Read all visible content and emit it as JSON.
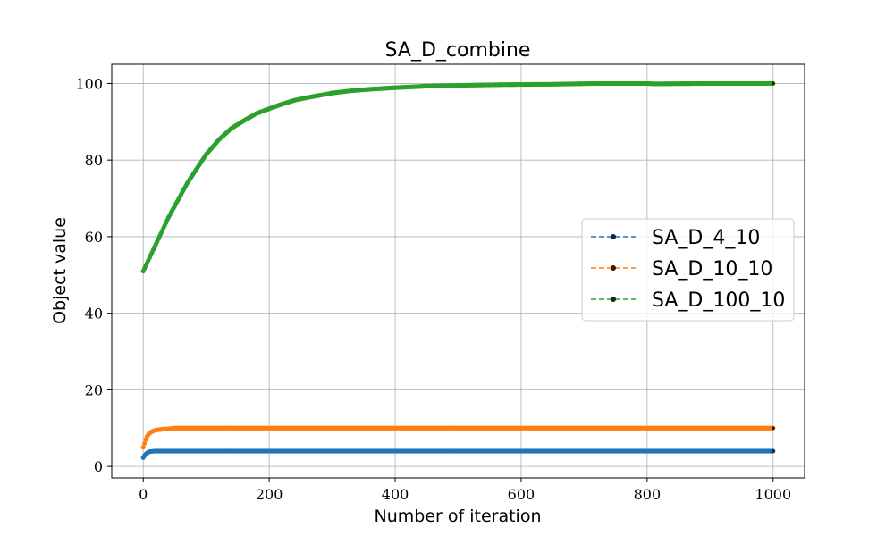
{
  "chart_data": {
    "type": "line",
    "title": "SA_D_combine",
    "xlabel": "Number of iteration",
    "ylabel": "Object value",
    "xlim": [
      -50,
      1050
    ],
    "ylim": [
      -3,
      105
    ],
    "xticks": [
      0,
      200,
      400,
      600,
      800,
      1000
    ],
    "yticks": [
      0,
      20,
      40,
      60,
      80,
      100
    ],
    "grid": true,
    "legend_position": "center-right",
    "series": [
      {
        "name": "SA_D_4_10",
        "color": "#1f77b4",
        "marker_color": "#0b2a4a",
        "x": [
          0,
          2,
          4,
          6,
          8,
          10,
          15,
          20,
          50,
          100,
          200,
          400,
          600,
          800,
          1000
        ],
        "y": [
          2.3,
          2.8,
          3.2,
          3.5,
          3.7,
          3.85,
          3.95,
          4,
          4,
          4,
          4,
          4,
          4,
          4,
          4
        ]
      },
      {
        "name": "SA_D_10_10",
        "color": "#ff7f0e",
        "marker_color": "#3a1a00",
        "x": [
          0,
          2,
          4,
          6,
          8,
          10,
          15,
          20,
          30,
          40,
          50,
          100,
          200,
          400,
          600,
          800,
          1000
        ],
        "y": [
          5,
          6,
          7,
          7.8,
          8.3,
          8.7,
          9.2,
          9.5,
          9.7,
          9.8,
          10,
          10,
          10,
          10,
          10,
          10,
          10
        ]
      },
      {
        "name": "SA_D_100_10",
        "color": "#2ca02c",
        "marker_color": "#0d2e0d",
        "x": [
          0,
          10,
          20,
          30,
          40,
          50,
          60,
          70,
          80,
          90,
          100,
          120,
          140,
          160,
          180,
          200,
          220,
          240,
          260,
          280,
          300,
          330,
          360,
          400,
          450,
          500,
          570,
          650,
          720,
          800,
          810,
          900,
          1000
        ],
        "y": [
          51,
          54.5,
          58,
          61.5,
          65,
          68,
          71,
          74,
          76.5,
          79,
          81.5,
          85.3,
          88.3,
          90.3,
          92.2,
          93.4,
          94.6,
          95.6,
          96.3,
          96.9,
          97.5,
          98.1,
          98.5,
          98.9,
          99.3,
          99.5,
          99.7,
          99.8,
          100,
          100,
          99.9,
          100,
          100
        ]
      }
    ]
  }
}
